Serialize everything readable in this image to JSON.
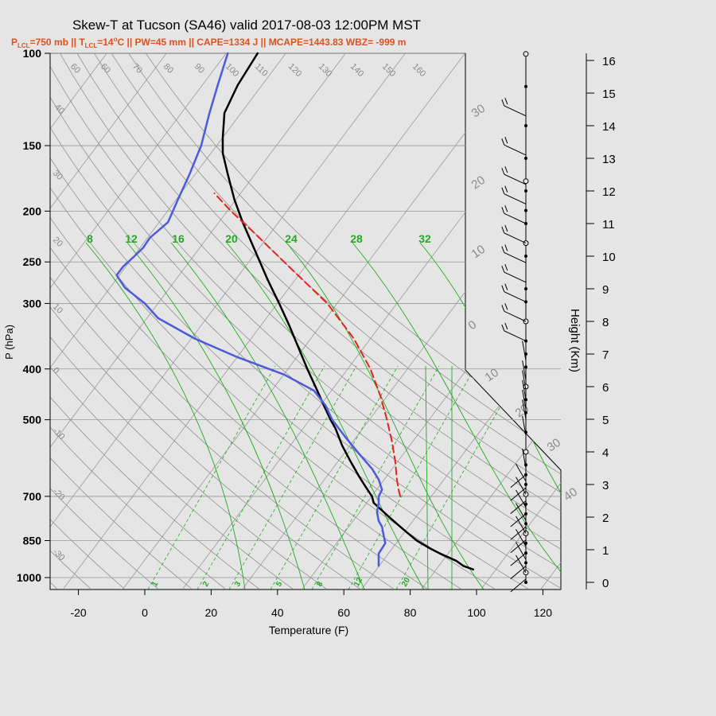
{
  "title": "Skew-T at Tucson (SA46) valid 2017-08-03 12:00PM MST",
  "subtitle": {
    "p_lcl": "=750 mb",
    "t_lcl": "=14",
    "t_lcl_unit": "C",
    "rest": " || PW=45 mm || CAPE=1334 J || MCAPE=1443.83 WBZ= -999 m"
  },
  "colors": {
    "background": "#e5e5e5",
    "grid": "#999999",
    "dry_adiabat": "#909090",
    "moist_adiabat": "#22aa22",
    "mixing_ratio": "#22aa22",
    "temperature": "#000000",
    "dewpoint": "#4b5bdb",
    "parcel": "#e2231a",
    "subtitle": "#e0501b"
  },
  "chart_data": {
    "type": "line",
    "title": "Skew-T at Tucson (SA46) valid 2017-08-03 12:00PM MST",
    "xlabel": "Temperature (F)",
    "ylabel": "P (hPa)",
    "y2label": "Height (Km)",
    "x_ticks": [
      -20,
      0,
      20,
      40,
      60,
      80,
      100,
      120
    ],
    "y_ticks": [
      100,
      150,
      200,
      250,
      300,
      400,
      500,
      700,
      850,
      1000
    ],
    "y2_ticks": [
      0,
      1,
      2,
      3,
      4,
      5,
      6,
      7,
      8,
      9,
      10,
      11,
      12,
      13,
      14,
      15,
      16
    ],
    "y_scale": "log",
    "xlim": [
      -28,
      125
    ],
    "ylim": [
      1050,
      100
    ],
    "grid": true,
    "skew_labels": [
      "30",
      "20",
      "10",
      "0",
      "10",
      "20",
      "30",
      "40"
    ],
    "dry_adiabat_labels": [
      "60",
      "60",
      "70",
      "80",
      "90",
      "100",
      "110",
      "120",
      "130",
      "140",
      "150",
      "160",
      "40",
      "30",
      "20",
      "10",
      "0",
      "-10",
      "-20",
      "-30"
    ],
    "moist_adiabat_labels": [
      "8",
      "12",
      "16",
      "20",
      "24",
      "28",
      "32"
    ],
    "mixing_ratio_labels": [
      "1",
      "2",
      "3",
      "5",
      "8",
      "12",
      "20"
    ],
    "series": [
      {
        "name": "Temperature",
        "p": [
          965,
          950,
          930,
          900,
          880,
          850,
          820,
          800,
          770,
          740,
          720,
          700,
          670,
          640,
          600,
          560,
          520,
          500,
          470,
          440,
          400,
          360,
          330,
          300,
          270,
          240,
          210,
          190,
          170,
          155,
          150,
          145,
          130,
          115,
          100
        ],
        "t": [
          99,
          96,
          94,
          89,
          86,
          82,
          79,
          77,
          74,
          71,
          69,
          68.5,
          66.5,
          64.5,
          62,
          59.5,
          57.5,
          56,
          54,
          52,
          49,
          46,
          43.5,
          40.5,
          37,
          33.5,
          29.5,
          27,
          25,
          23.5,
          23.5,
          23.5,
          24,
          28,
          34
        ]
      },
      {
        "name": "Dewpoint",
        "p": [
          950,
          900,
          860,
          830,
          800,
          780,
          750,
          720,
          700,
          680,
          650,
          620,
          580,
          540,
          500,
          470,
          440,
          410,
          380,
          350,
          320,
          300,
          280,
          265,
          255,
          245,
          235,
          225,
          210,
          190,
          170,
          150,
          130,
          115,
          100
        ],
        "t": [
          70.5,
          70.5,
          72.5,
          72,
          71.5,
          70.5,
          70,
          70.5,
          70.5,
          71.5,
          70.5,
          68.5,
          64.5,
          60.5,
          56.5,
          54.5,
          51,
          42,
          28,
          15,
          4,
          0,
          -6,
          -8.5,
          -6.5,
          -3.5,
          -0.5,
          1.5,
          7,
          10,
          13.5,
          17,
          19.5,
          22,
          25
        ]
      },
      {
        "name": "Parcel",
        "p": [
          700,
          680,
          650,
          600,
          550,
          500,
          450,
          400,
          350,
          300,
          250,
          220,
          200,
          185
        ],
        "t": [
          77,
          76.5,
          76,
          75.5,
          74.5,
          73,
          71,
          68,
          63,
          55,
          42,
          33,
          26,
          21
        ]
      }
    ],
    "wind_barbs_km": [
      0.1,
      0.3,
      0.5,
      0.7,
      0.9,
      1.1,
      1.3,
      1.5,
      1.7,
      1.9,
      2.1,
      2.3,
      2.5,
      2.7,
      2.9,
      3.1,
      3.3,
      3.5,
      4.5,
      5.0,
      5.3,
      5.6,
      5.9,
      6.2,
      6.8,
      7.4,
      8.0,
      8.6,
      9.2,
      9.8,
      10.4,
      11.0,
      11.6,
      12.2,
      13.1,
      14.3
    ],
    "wind_markers_km": [
      0,
      0.3,
      0.6,
      0.9,
      1.2,
      1.5,
      1.8,
      2.1,
      2.4,
      2.7,
      3.0,
      3.3,
      3.6,
      4.0,
      4.6,
      5.2,
      5.6,
      6.0,
      6.6,
      7.0,
      7.4,
      8.0,
      8.6,
      9.0,
      10.0,
      10.4,
      11.0,
      11.4,
      12.0,
      12.3,
      13.0,
      14.0,
      15.2,
      16.2
    ]
  }
}
